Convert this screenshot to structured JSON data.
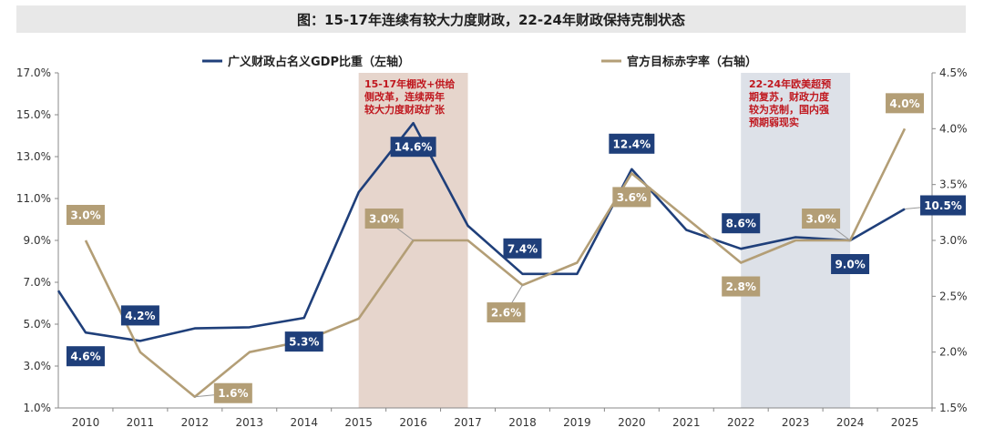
{
  "title": "图：15-17年连续有较大力度财政，22-24年财政保持克制状态",
  "colors": {
    "left_series": "#1f3f7a",
    "right_series": "#b39e76",
    "shade_2015": "#e6d5cc",
    "shade_2022": "#dde1e8",
    "annotation": "#c0181f"
  },
  "chart_data": {
    "type": "line",
    "legend": [
      "广义财政占名义GDP比重（左轴）",
      "官方目标赤字率（右轴）"
    ],
    "legend_position": "top",
    "grid": false,
    "x_tick_labels": [
      "2010",
      "2011",
      "2012",
      "2013",
      "2014",
      "2015",
      "2016",
      "2017",
      "2018",
      "2019",
      "2020",
      "2021",
      "2022",
      "2023",
      "2024",
      "2025"
    ],
    "y_left": {
      "ylim": [
        1.0,
        17.0
      ],
      "ticks": [
        "1.0%",
        "3.0%",
        "5.0%",
        "7.0%",
        "9.0%",
        "11.0%",
        "13.0%",
        "15.0%",
        "17.0%"
      ]
    },
    "y_right": {
      "ylim": [
        1.5,
        4.5
      ],
      "ticks": [
        "1.5%",
        "2.0%",
        "2.5%",
        "3.0%",
        "3.5%",
        "4.0%",
        "4.5%"
      ]
    },
    "series": [
      {
        "name": "广义财政占名义GDP比重（左轴）",
        "axis": "left",
        "points": [
          [
            2009.5,
            6.6
          ],
          [
            2010,
            4.6
          ],
          [
            2011,
            4.2
          ],
          [
            2012,
            4.8
          ],
          [
            2013,
            4.85
          ],
          [
            2014,
            5.3
          ],
          [
            2015,
            11.3
          ],
          [
            2016,
            14.6
          ],
          [
            2017,
            9.7
          ],
          [
            2018,
            7.4
          ],
          [
            2019,
            7.4
          ],
          [
            2020,
            12.4
          ],
          [
            2021,
            9.5
          ],
          [
            2022,
            8.6
          ],
          [
            2023,
            9.15
          ],
          [
            2024,
            9.0
          ],
          [
            2025,
            10.5
          ]
        ]
      },
      {
        "name": "官方目标赤字率（右轴）",
        "axis": "right",
        "points": [
          [
            2010,
            3.0
          ],
          [
            2011,
            2.0
          ],
          [
            2012,
            1.6
          ],
          [
            2013,
            2.0
          ],
          [
            2014,
            2.1
          ],
          [
            2015,
            2.3
          ],
          [
            2016,
            3.0
          ],
          [
            2017,
            3.0
          ],
          [
            2018,
            2.6
          ],
          [
            2019,
            2.8
          ],
          [
            2020,
            3.6
          ],
          [
            2021,
            3.2
          ],
          [
            2022,
            2.8
          ],
          [
            2023,
            3.0
          ],
          [
            2024,
            3.0
          ],
          [
            2025,
            4.0
          ]
        ]
      }
    ],
    "data_labels": [
      {
        "text": "4.6%",
        "series": 0,
        "x": 2010,
        "y": 4.6,
        "pos": "below"
      },
      {
        "text": "4.2%",
        "series": 0,
        "x": 2011,
        "y": 4.2,
        "pos": "above"
      },
      {
        "text": "5.3%",
        "series": 0,
        "x": 2014,
        "y": 5.3,
        "pos": "below"
      },
      {
        "text": "14.6%",
        "series": 0,
        "x": 2016,
        "y": 14.6,
        "pos": "below"
      },
      {
        "text": "7.4%",
        "series": 0,
        "x": 2018,
        "y": 7.4,
        "pos": "above"
      },
      {
        "text": "12.4%",
        "series": 0,
        "x": 2020,
        "y": 12.4,
        "pos": "above"
      },
      {
        "text": "8.6%",
        "series": 0,
        "x": 2022,
        "y": 8.6,
        "pos": "above"
      },
      {
        "text": "9.0%",
        "series": 0,
        "x": 2024,
        "y": 9.0,
        "pos": "below"
      },
      {
        "text": "10.5%",
        "series": 0,
        "x": 2025,
        "y": 10.5,
        "pos": "right"
      },
      {
        "text": "3.0%",
        "series": 1,
        "x": 2010,
        "y": 3.0,
        "pos": "above"
      },
      {
        "text": "1.6%",
        "series": 1,
        "x": 2012,
        "y": 1.6,
        "pos": "right"
      },
      {
        "text": "3.0%",
        "series": 1,
        "x": 2016,
        "y": 3.0,
        "pos": "upper-left"
      },
      {
        "text": "2.6%",
        "series": 1,
        "x": 2018,
        "y": 2.6,
        "pos": "lower-left"
      },
      {
        "text": "3.6%",
        "series": 1,
        "x": 2020,
        "y": 3.6,
        "pos": "below"
      },
      {
        "text": "2.8%",
        "series": 1,
        "x": 2022,
        "y": 2.8,
        "pos": "below"
      },
      {
        "text": "3.0%",
        "series": 1,
        "x": 2024,
        "y": 3.0,
        "pos": "upper-left"
      },
      {
        "text": "4.0%",
        "series": 1,
        "x": 2025,
        "y": 4.0,
        "pos": "above"
      }
    ],
    "shaded_regions": [
      {
        "x_range": [
          2015,
          2017
        ],
        "annotation": [
          "15-17年棚改+供给",
          "侧改革，连续两年",
          "较大力度财政扩张"
        ]
      },
      {
        "x_range": [
          2022,
          2024
        ],
        "annotation": [
          "22-24年欧美超预",
          "期复苏，财政力度",
          "较为克制，国内强",
          "预期弱现实"
        ]
      }
    ]
  }
}
